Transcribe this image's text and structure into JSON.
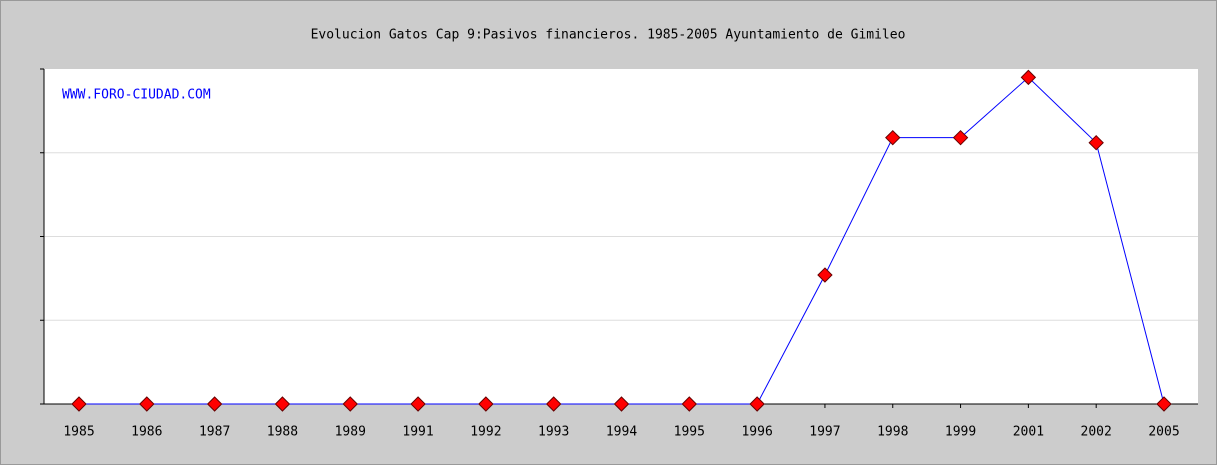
{
  "chart_data": {
    "type": "line",
    "title": "Evolucion Gatos Cap 9:Pasivos financieros. 1985-2005 Ayuntamiento de Gimileo",
    "annotation": "WWW.FORO-CIUDAD.COM",
    "categories": [
      "1985",
      "1986",
      "1987",
      "1988",
      "1989",
      "1991",
      "1992",
      "1993",
      "1994",
      "1995",
      "1996",
      "1997",
      "1998",
      "1999",
      "2001",
      "2002",
      "2005"
    ],
    "values": [
      0,
      0,
      0,
      0,
      0,
      0,
      0,
      0,
      0,
      0,
      0,
      1.54,
      3.18,
      3.18,
      3.9,
      3.12,
      0
    ],
    "color": "#0000ff",
    "marker_color": "#ff0000",
    "ylim": [
      0,
      4
    ],
    "yticks": [
      0,
      1,
      2,
      3,
      4
    ],
    "grid": true
  }
}
